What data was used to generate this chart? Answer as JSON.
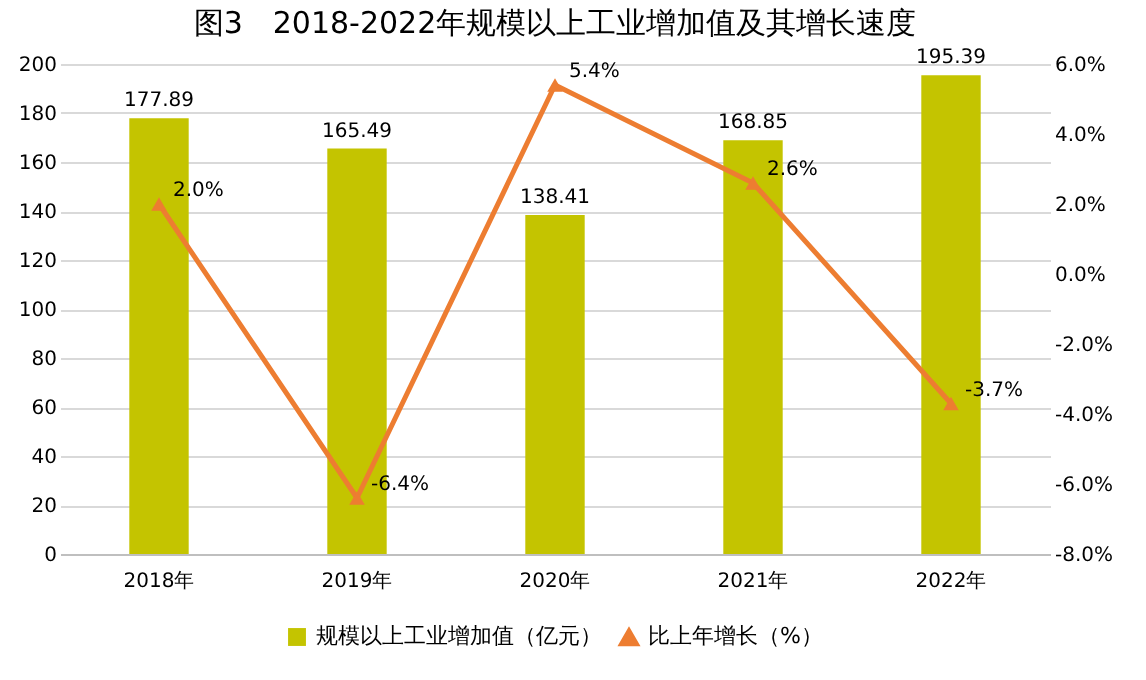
{
  "chart_data": {
    "type": "bar",
    "title": "图3　2018-2022年规模以上工业增加值及其增长速度",
    "categories": [
      "2018年",
      "2019年",
      "2020年",
      "2021年",
      "2022年"
    ],
    "series": [
      {
        "name": "规模以上工业增加值（亿元）",
        "color": "#c4c400",
        "values": [
          177.89,
          165.49,
          138.41,
          168.85,
          195.39
        ],
        "value_labels": [
          "177.89",
          "165.49",
          "138.41",
          "168.85",
          "195.39"
        ]
      },
      {
        "name": "比上年增长（%）",
        "type": "line",
        "axis": "y2",
        "color": "#ed7d31",
        "marker": "triangle",
        "values": [
          2.0,
          -6.4,
          5.4,
          2.6,
          -3.7
        ],
        "value_labels": [
          "2.0%",
          "-6.4%",
          "5.4%",
          "2.6%",
          "-3.7%"
        ]
      }
    ],
    "ylim": [
      0,
      200
    ],
    "yticks": [
      0,
      20,
      40,
      60,
      80,
      100,
      120,
      140,
      160,
      180,
      200
    ],
    "y2lim": [
      -8,
      6
    ],
    "y2ticks": [
      {
        "value": -8,
        "label": "-8.0%"
      },
      {
        "value": -6,
        "label": "-6.0%"
      },
      {
        "value": -4,
        "label": "-4.0%"
      },
      {
        "value": -2,
        "label": "-2.0%"
      },
      {
        "value": 0,
        "label": "0.0%"
      },
      {
        "value": 2,
        "label": "2.0%"
      },
      {
        "value": 4,
        "label": "4.0%"
      },
      {
        "value": 6,
        "label": "6.0%"
      }
    ],
    "grid": "y",
    "legend": "bottom"
  }
}
